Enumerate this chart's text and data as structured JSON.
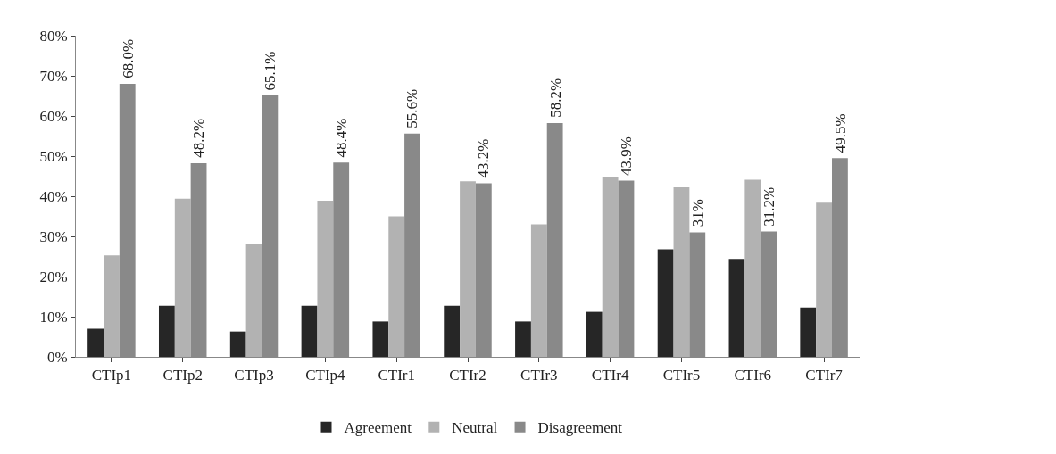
{
  "chart_data": {
    "type": "bar",
    "categories": [
      "CTIp1",
      "CTIp2",
      "CTIp3",
      "CTIp4",
      "CTIr1",
      "CTIr2",
      "CTIr3",
      "CTIr4",
      "CTIr5",
      "CTIr6",
      "CTIr7"
    ],
    "series": [
      {
        "name": "Agreement",
        "color": "#262626",
        "values": [
          7.0,
          12.7,
          6.3,
          12.7,
          8.8,
          12.7,
          8.8,
          11.2,
          26.8,
          24.4,
          12.3
        ]
      },
      {
        "name": "Neutral",
        "color": "#b2b2b2",
        "values": [
          25.3,
          39.4,
          28.2,
          38.9,
          35.0,
          43.7,
          33.0,
          44.7,
          42.2,
          44.1,
          38.4
        ]
      },
      {
        "name": "Disagreement",
        "color": "#898989",
        "values": [
          68.0,
          48.2,
          65.1,
          48.4,
          55.6,
          43.2,
          58.2,
          43.9,
          31,
          31.2,
          49.5
        ],
        "value_labels": [
          "68.0%",
          "48.2%",
          "65.1%",
          "48.4%",
          "55.6%",
          "43.2%",
          "58.2%",
          "43.9%",
          "31%",
          "31.2%",
          "49.5%"
        ]
      }
    ],
    "ylim": [
      0,
      80
    ],
    "yticks": [
      {
        "value": 0,
        "label": "0%"
      },
      {
        "value": 10,
        "label": "10%"
      },
      {
        "value": 20,
        "label": "20%"
      },
      {
        "value": 30,
        "label": "30%"
      },
      {
        "value": 40,
        "label": "40%"
      },
      {
        "value": 50,
        "label": "50%"
      },
      {
        "value": 60,
        "label": "60%"
      },
      {
        "value": 70,
        "label": "70%"
      },
      {
        "value": 80,
        "label": "80%"
      }
    ],
    "grid": false,
    "legend": "bottom"
  }
}
